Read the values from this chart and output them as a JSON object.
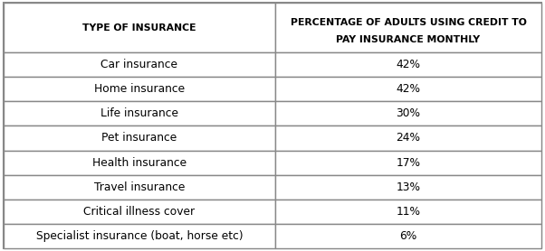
{
  "col1_header": "TYPE OF INSURANCE",
  "col2_header_line1": "PERCENTAGE OF ADULTS USING CREDIT TO",
  "col2_header_line2": "PAY INSURANCE MONTHLY",
  "rows": [
    [
      "Car insurance",
      "42%"
    ],
    [
      "Home insurance",
      "42%"
    ],
    [
      "Life insurance",
      "30%"
    ],
    [
      "Pet insurance",
      "24%"
    ],
    [
      "Health insurance",
      "17%"
    ],
    [
      "Travel insurance",
      "13%"
    ],
    [
      "Critical illness cover",
      "11%"
    ],
    [
      "Specialist insurance (boat, horse etc)",
      "6%"
    ]
  ],
  "bg_color": "#ffffff",
  "border_color": "#888888",
  "text_color": "#000000",
  "header_font_size": 7.8,
  "cell_font_size": 8.8,
  "col_split": 0.505
}
